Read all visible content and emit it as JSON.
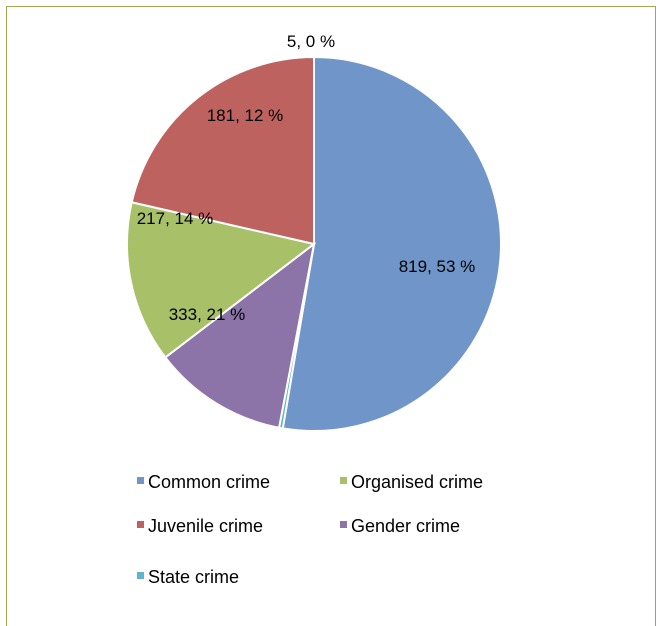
{
  "chart_data": {
    "type": "pie",
    "title": "",
    "categories": [
      "Common crime",
      "Juvenile crime",
      "Organised crime",
      "Gender crime",
      "State crime"
    ],
    "values": [
      819,
      333,
      217,
      181,
      5
    ],
    "labels": [
      "819, 53 %",
      "333, 21 %",
      "217, 14 %",
      "181, 12 %",
      "5, 0 %"
    ],
    "colors": [
      "#7096c9",
      "#be625f",
      "#a8c168",
      "#8c74a8",
      "#5fb3cb"
    ],
    "legend": {
      "placement": "bottom",
      "items": [
        {
          "name": "Common crime",
          "color": "#7096c9"
        },
        {
          "name": "Organised crime",
          "color": "#a8c168"
        },
        {
          "name": "Juvenile crime",
          "color": "#be625f"
        },
        {
          "name": "Gender crime",
          "color": "#8c74a8"
        },
        {
          "name": "State crime",
          "color": "#5fb3cb"
        }
      ]
    }
  }
}
